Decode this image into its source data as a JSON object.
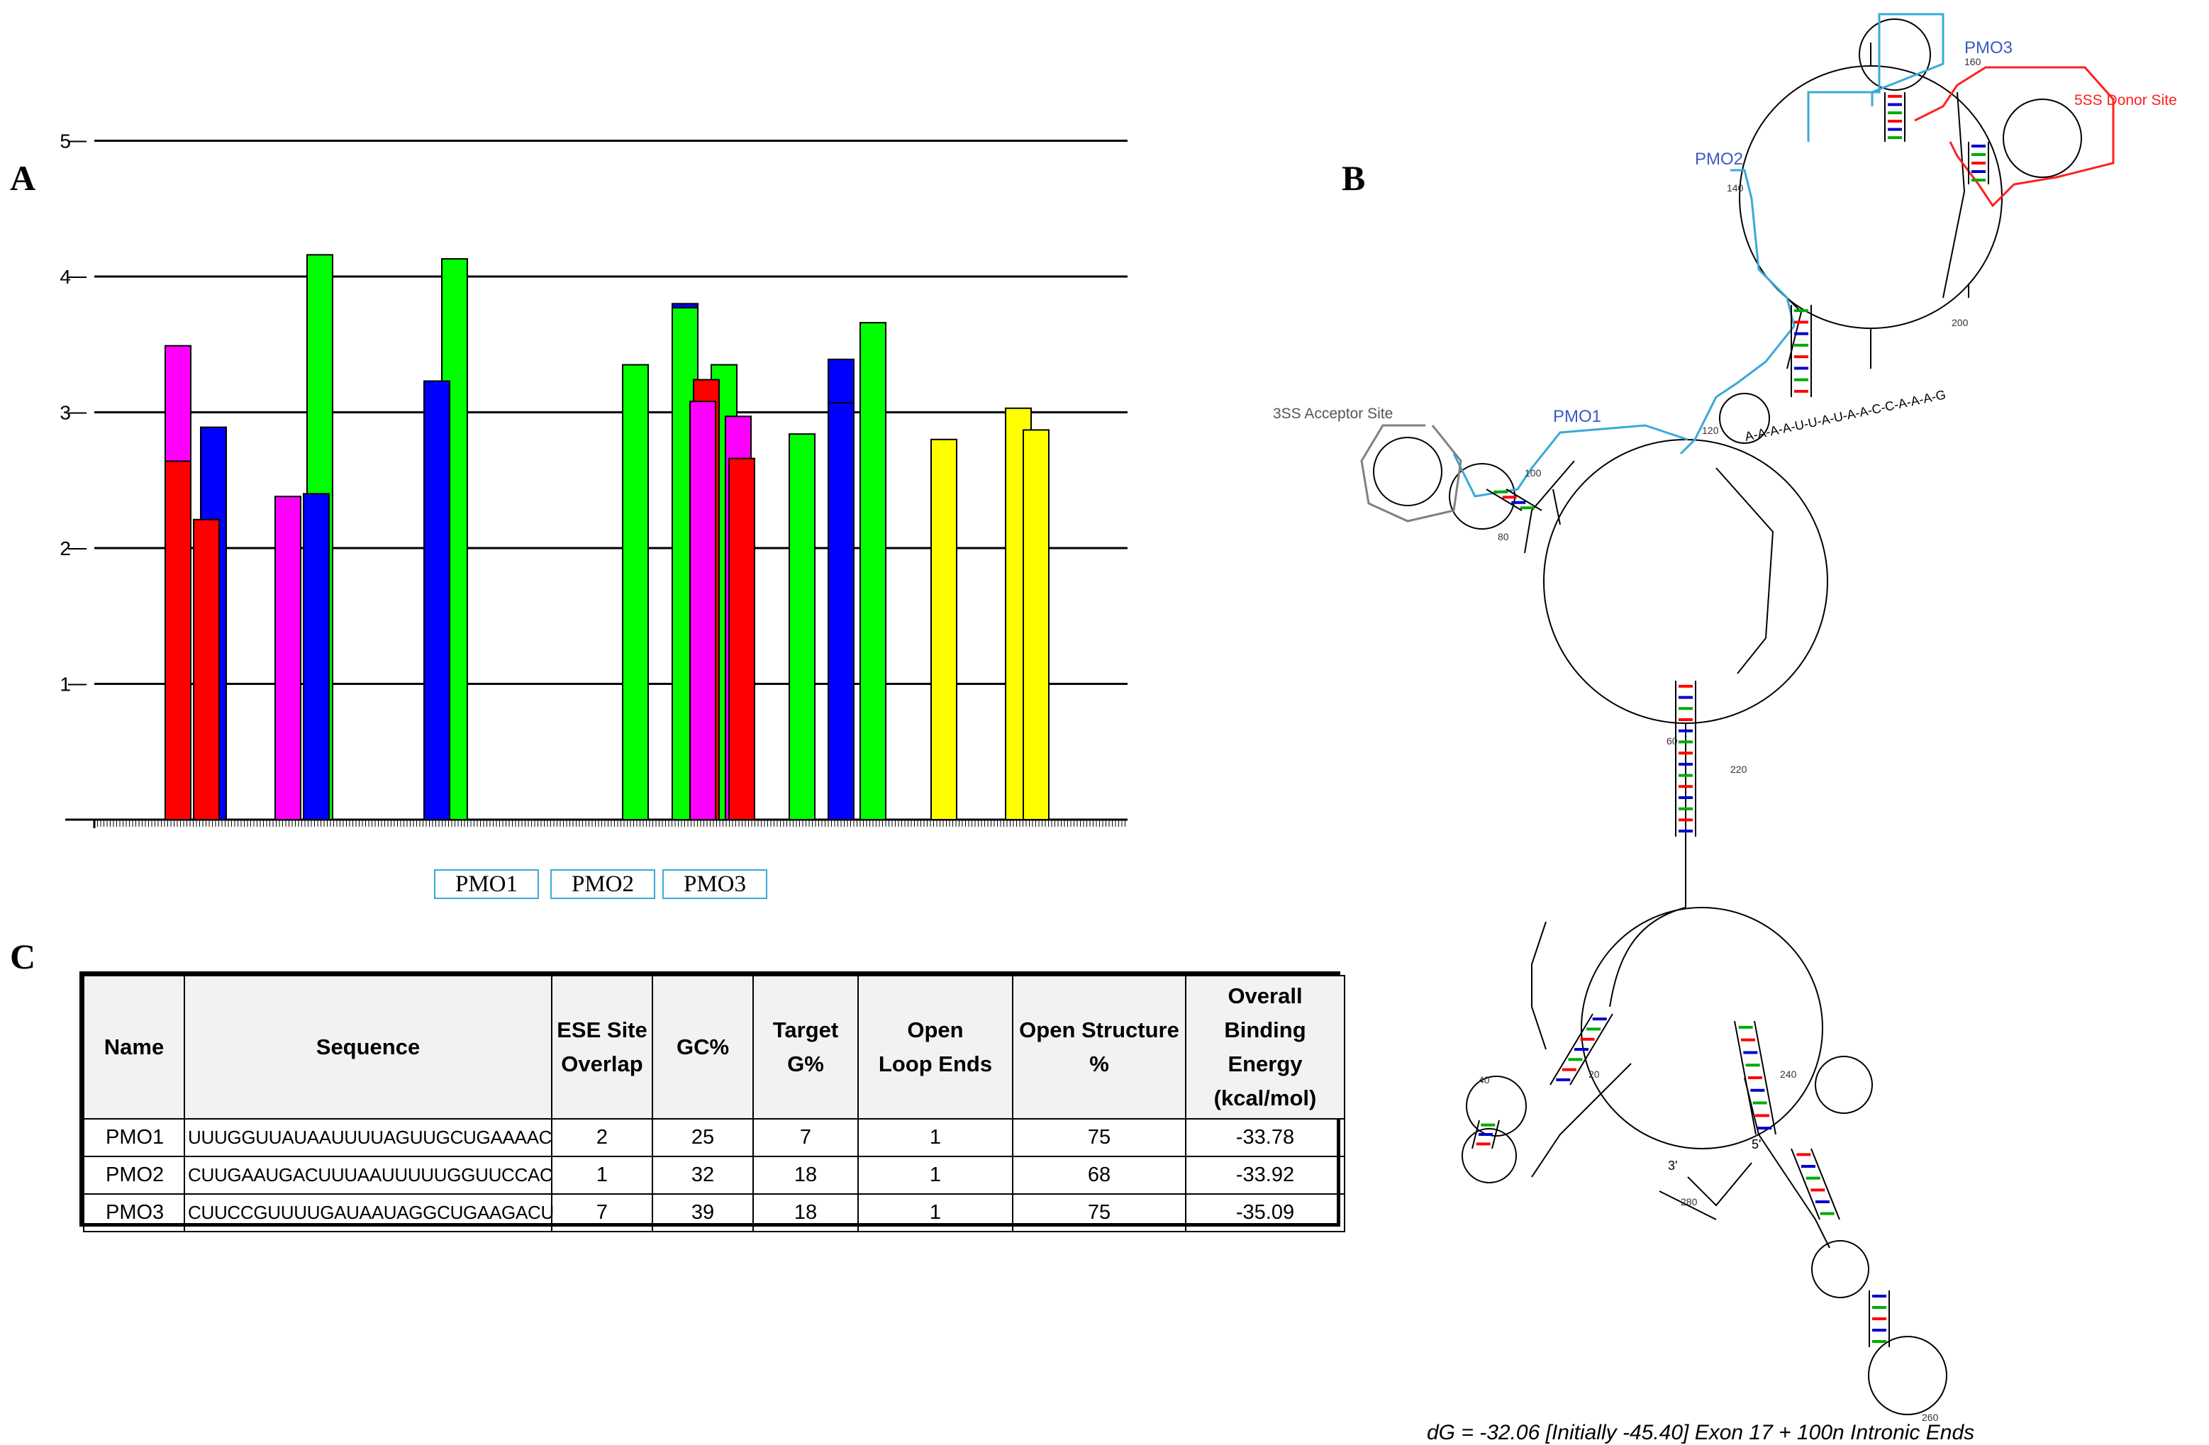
{
  "panels": {
    "a": "A",
    "b": "B",
    "c": "C"
  },
  "colors": {
    "red": "#ff0000",
    "magenta": "#ff00ff",
    "blue": "#0000ff",
    "green": "#00ff00",
    "yellow": "#ffff00",
    "pmo_outline": "#3aa8d8",
    "donor_outline": "#ff2020",
    "acceptor_outline": "#808080"
  },
  "chart_data": {
    "type": "bar",
    "xlabel": "",
    "ylabel": "",
    "ylim": [
      0,
      5
    ],
    "yticks": [
      "1",
      "2",
      "3",
      "4",
      "5"
    ],
    "grid": true,
    "note": "ESE motif score bars along exon sequence position; overlapping bars stacked by colour",
    "series": [
      {
        "color": "red",
        "bars": [
          {
            "pos": 20,
            "value": 2.64
          },
          {
            "pos": 28,
            "value": 2.21
          },
          {
            "pos": 169,
            "value": 3.24
          },
          {
            "pos": 179,
            "value": 2.66
          }
        ]
      },
      {
        "color": "magenta",
        "bars": [
          {
            "pos": 20,
            "value": 3.49
          },
          {
            "pos": 51,
            "value": 2.38
          },
          {
            "pos": 168,
            "value": 3.08
          },
          {
            "pos": 178,
            "value": 2.97
          }
        ]
      },
      {
        "color": "blue",
        "bars": [
          {
            "pos": 30,
            "value": 2.89
          },
          {
            "pos": 59,
            "value": 2.4
          },
          {
            "pos": 93,
            "value": 3.23
          },
          {
            "pos": 163,
            "value": 3.8
          },
          {
            "pos": 207,
            "value": 3.39
          },
          {
            "pos": 207,
            "value": 3.07
          }
        ]
      },
      {
        "color": "green",
        "bars": [
          {
            "pos": 60,
            "value": 4.16
          },
          {
            "pos": 98,
            "value": 4.13
          },
          {
            "pos": 149,
            "value": 3.35
          },
          {
            "pos": 163,
            "value": 3.77
          },
          {
            "pos": 174,
            "value": 3.35
          },
          {
            "pos": 196,
            "value": 2.84
          },
          {
            "pos": 216,
            "value": 3.66
          }
        ]
      },
      {
        "color": "yellow",
        "bars": [
          {
            "pos": 236,
            "value": 2.8
          },
          {
            "pos": 257,
            "value": 3.03
          },
          {
            "pos": 262,
            "value": 2.87
          }
        ]
      }
    ]
  },
  "pmo_boxes": [
    "PMO1",
    "PMO2",
    "PMO3"
  ],
  "table": {
    "headers": [
      "Name",
      "Sequence",
      "ESE Site Overlap",
      "GC%",
      "Target G%",
      "Open Loop Ends",
      "Open Structure %",
      "Overall Binding Energy (kcal/mol)"
    ],
    "header_lines": [
      [
        "Name"
      ],
      [
        "Sequence"
      ],
      [
        "ESE Site",
        "Overlap"
      ],
      [
        "GC%"
      ],
      [
        "Target",
        "G%"
      ],
      [
        "Open",
        "Loop Ends"
      ],
      [
        "Open Structure",
        "%"
      ],
      [
        "Overall Binding",
        "Energy",
        "(kcal/mol)"
      ]
    ],
    "rows": [
      [
        "PMO1",
        "UUUGGUUAUAAUUUUAGUUGCUGAAAAC",
        "2",
        "25",
        "7",
        "1",
        "75",
        "-33.78"
      ],
      [
        "PMO2",
        "CUUGAAUGACUUUAAUUUUUGGUUCCAC",
        "1",
        "32",
        "18",
        "1",
        "68",
        "-33.92"
      ],
      [
        "PMO3",
        "CUUCCGUUUUGAUAAUAGGCUGAAGACU",
        "7",
        "39",
        "18",
        "1",
        "75",
        "-35.09"
      ]
    ]
  },
  "structure": {
    "labels": {
      "pmo1": "PMO1",
      "pmo2": "PMO2",
      "pmo3": "PMO3",
      "donor": "5SS Donor Site",
      "acceptor": "3SS Acceptor Site",
      "end3": "3'",
      "end5": "5'"
    },
    "numbers": [
      "20",
      "40",
      "60",
      "80",
      "100",
      "120",
      "140",
      "160",
      "200",
      "220",
      "240",
      "260",
      "280"
    ],
    "pmo1_strand": "A-A-A-A-U-U-A-U-A-A-C-C-A-A-A-G",
    "caption": "dG = -32.06 [Initially -45.40] Exon 17 + 100n Intronic Ends"
  }
}
